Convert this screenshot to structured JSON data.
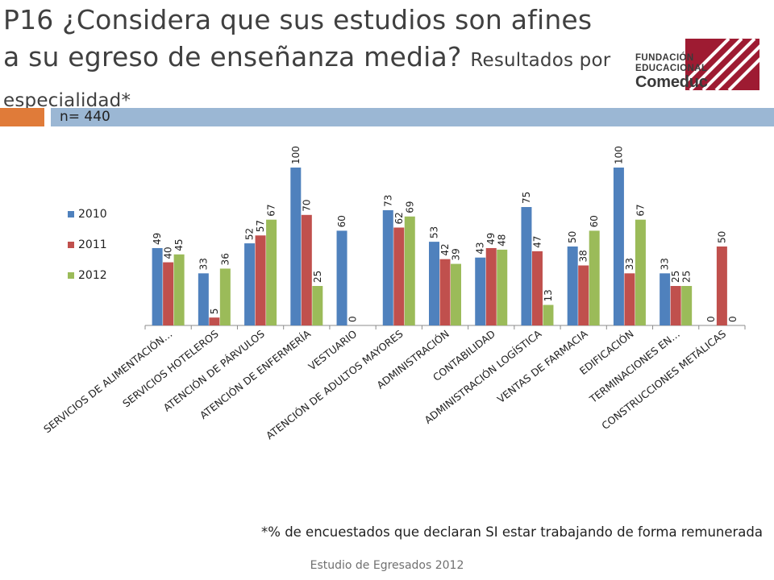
{
  "header": {
    "title": "P16 ¿Considera que sus estudios son afines a su egreso de enseñanza media?",
    "subtitle": "Resultados por especialidad*",
    "sample": "n= 440"
  },
  "logo": {
    "line1": "FUNDACIÓN",
    "line2": "EDUCACIONAL",
    "line3": "Comeduc"
  },
  "colors": {
    "accent_orange": "#e07b39",
    "band_blue": "#9bb7d4",
    "logo_red": "#9e1b32"
  },
  "chart_data": {
    "type": "bar",
    "categories": [
      "SERVICIOS DE ALIMENTACIÓN…",
      "SERVICIOS HOTELEROS",
      "ATENCIÓN DE PÁRVULOS",
      "ATENCIÓN DE ENFERMERÍA",
      "VESTUARIO",
      "ATENCIÓN DE ADULTOS MAYORES",
      "ADMINISTRACIÓN",
      "CONTABILIDAD",
      "ADMINISTRACIÓN LOGÍSTICA",
      "VENTAS DE FARMACIA",
      "EDIFICACIÓN",
      "TERMINACIONES EN…",
      "CONSTRUCCIONES METÁLICAS"
    ],
    "series": [
      {
        "name": "2010",
        "color": "#4f81bd",
        "values": [
          49,
          33,
          52,
          100,
          60,
          73,
          53,
          43,
          75,
          50,
          100,
          33,
          0
        ]
      },
      {
        "name": "2011",
        "color": "#c0504d",
        "values": [
          40,
          5,
          57,
          70,
          0,
          62,
          42,
          49,
          47,
          38,
          33,
          25,
          50
        ]
      },
      {
        "name": "2012",
        "color": "#9bbb59",
        "values": [
          45,
          36,
          67,
          25,
          null,
          69,
          39,
          48,
          13,
          60,
          67,
          25,
          0
        ]
      }
    ],
    "ylim": [
      0,
      100
    ],
    "grid": false,
    "legend": "left"
  },
  "footnote": "*% de encuestados que declaran SI estar trabajando de forma remunerada",
  "footer": "Estudio de Egresados 2012"
}
